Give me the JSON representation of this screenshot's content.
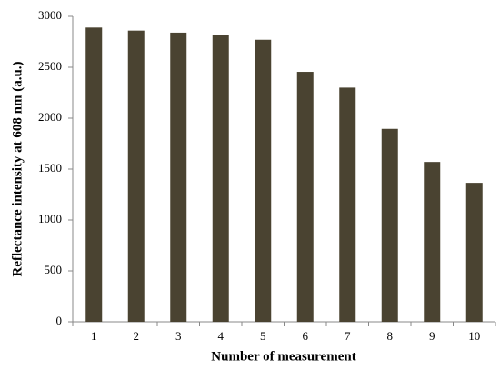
{
  "chart_data": {
    "type": "bar",
    "x_label": "Number of measurement",
    "y_label": "Reflectance intensity at 608 nm (a.u.)",
    "categories": [
      "1",
      "2",
      "3",
      "4",
      "5",
      "6",
      "7",
      "8",
      "9",
      "10"
    ],
    "values": [
      2890,
      2860,
      2840,
      2820,
      2770,
      2455,
      2300,
      1895,
      1570,
      1365
    ],
    "color": "#4a4331",
    "ylim": [
      0,
      3000
    ],
    "yticks": [
      0,
      500,
      1000,
      1500,
      2000,
      2500,
      3000
    ],
    "grid": false
  }
}
